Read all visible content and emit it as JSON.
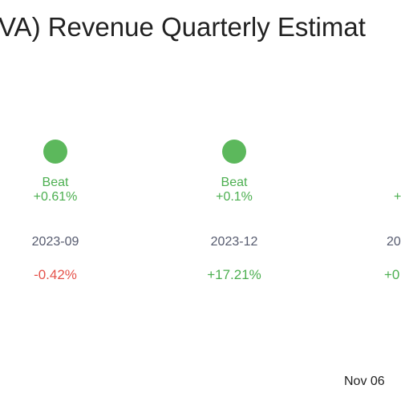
{
  "title": "VA) Revenue Quarterly Estimat",
  "columns": [
    {
      "result": "Beat",
      "surprise": "+0.61%",
      "period": "2023-09",
      "change": "-0.42%"
    },
    {
      "result": "Beat",
      "surprise": "+0.1%",
      "period": "2023-12",
      "change": "+17.21%"
    }
  ],
  "partial_column": {
    "surprise": "+",
    "period": "20",
    "change": "+0"
  },
  "date": "Nov 06"
}
